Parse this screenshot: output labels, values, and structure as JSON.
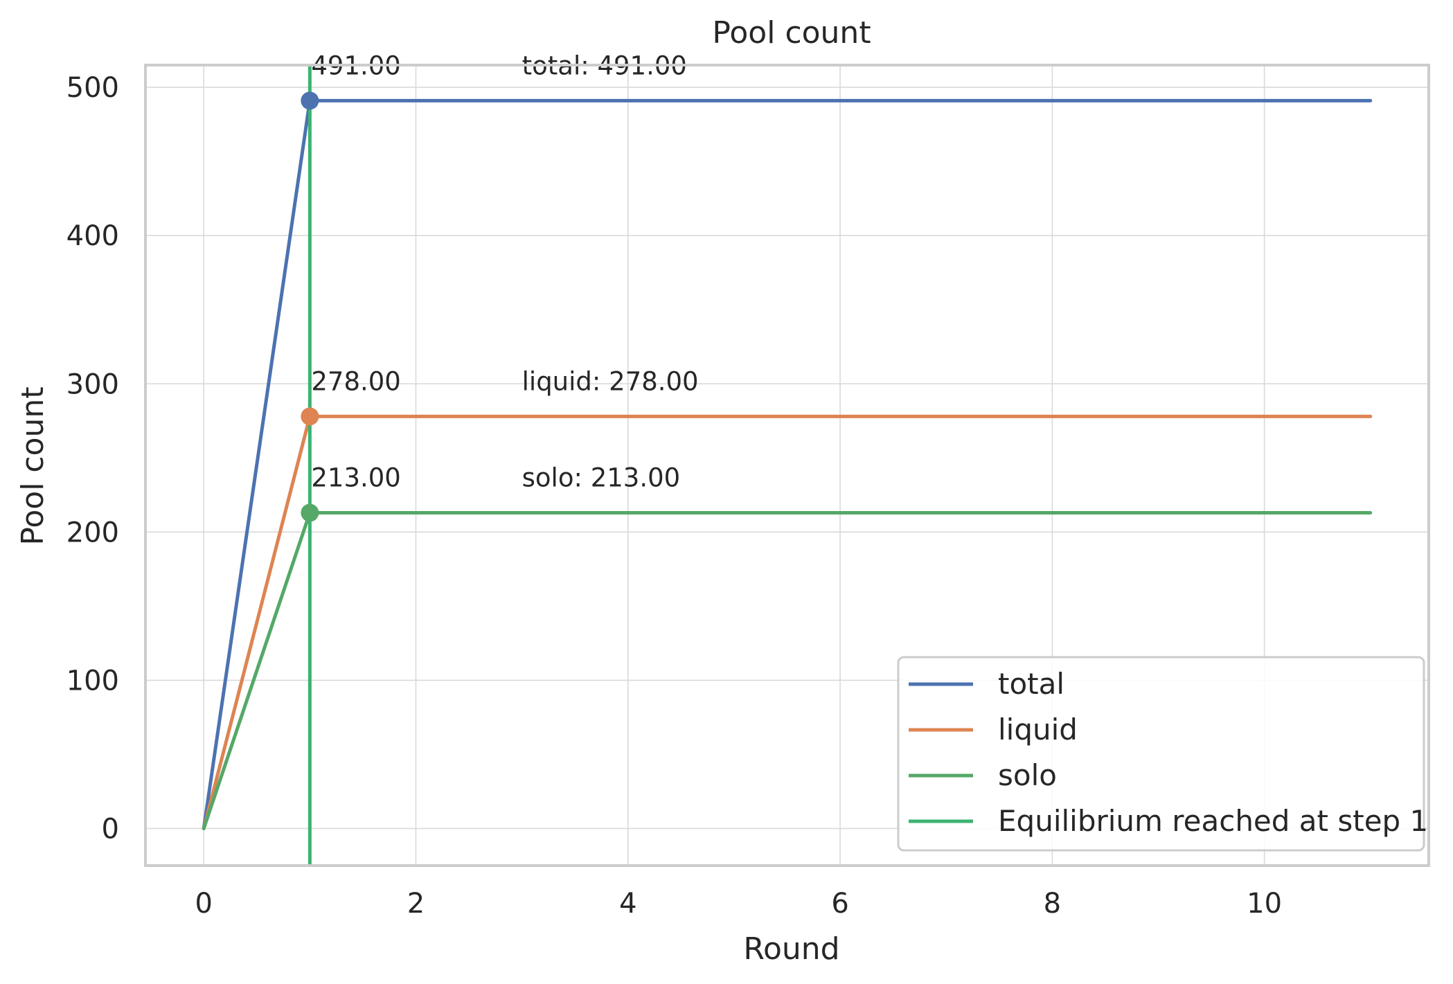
{
  "chart_data": {
    "type": "line",
    "title": "Pool count",
    "xlabel": "Round",
    "ylabel": "Pool count",
    "xlim": [
      -0.55,
      11.55
    ],
    "ylim": [
      -25,
      515
    ],
    "xticks": [
      0,
      2,
      4,
      6,
      8,
      10
    ],
    "yticks": [
      0,
      100,
      200,
      300,
      400,
      500
    ],
    "grid": true,
    "legend_position": "lower-right",
    "x": [
      0,
      1,
      2,
      3,
      4,
      5,
      6,
      7,
      8,
      9,
      10,
      11
    ],
    "series": [
      {
        "name": "total",
        "color": "#4c72b0",
        "values": [
          0,
          491,
          491,
          491,
          491,
          491,
          491,
          491,
          491,
          491,
          491,
          491
        ]
      },
      {
        "name": "liquid",
        "color": "#dd8452",
        "values": [
          0,
          278,
          278,
          278,
          278,
          278,
          278,
          278,
          278,
          278,
          278,
          278
        ]
      },
      {
        "name": "solo",
        "color": "#55a868",
        "values": [
          0,
          213,
          213,
          213,
          213,
          213,
          213,
          213,
          213,
          213,
          213,
          213
        ]
      }
    ],
    "markers": [
      {
        "series": "total",
        "x": 1,
        "y": 491,
        "label": "491.00"
      },
      {
        "series": "liquid",
        "x": 1,
        "y": 278,
        "label": "278.00"
      },
      {
        "series": "solo",
        "x": 1,
        "y": 213,
        "label": "213.00"
      }
    ],
    "annotations": [
      {
        "x": 3,
        "y": 491,
        "text": "total: 491.00"
      },
      {
        "x": 3,
        "y": 278,
        "text": "liquid: 278.00"
      },
      {
        "x": 3,
        "y": 213,
        "text": "solo: 213.00"
      }
    ],
    "vline": {
      "x": 1,
      "label": "Equilibrium reached at step 1",
      "color": "#3cb371"
    }
  }
}
